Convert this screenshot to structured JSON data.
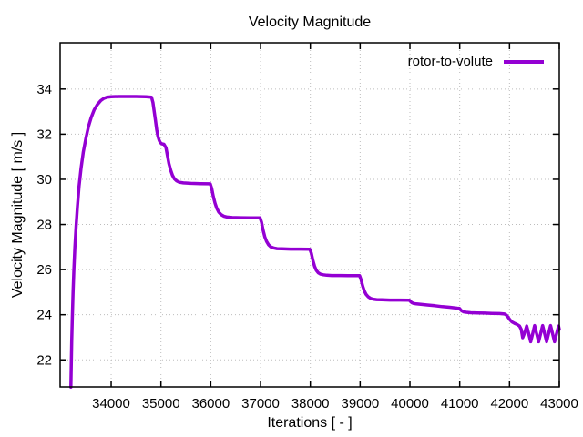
{
  "title": "Velocity Magnitude",
  "axes": {
    "xlabel": "Iterations [ - ]",
    "ylabel": "Velocity Magnitude [ m/s ]"
  },
  "legend": {
    "label": "rotor-to-volute",
    "position": "top-right-inside"
  },
  "colors": {
    "line": "#9400d3",
    "grid": "#bdbdbd",
    "axis": "#000000",
    "background": "#ffffff",
    "text": "#000000"
  },
  "chart_data": {
    "type": "line",
    "title": "Velocity Magnitude",
    "xlabel": "Iterations [ - ]",
    "ylabel": "Velocity Magnitude [ m/s ]",
    "xlim": [
      32975,
      43000
    ],
    "ylim": [
      20.8,
      36.05
    ],
    "x_ticks": [
      34000,
      35000,
      36000,
      37000,
      38000,
      39000,
      40000,
      41000,
      42000,
      43000
    ],
    "y_ticks": [
      22,
      24,
      26,
      28,
      30,
      32,
      34
    ],
    "grid": true,
    "grid_style": "dotted",
    "legend_position": "top-right-inside",
    "series": [
      {
        "name": "rotor-to-volute",
        "color": "#9400d3",
        "points": [
          [
            33190,
            20.79
          ],
          [
            33198,
            21.7
          ],
          [
            33208,
            22.8
          ],
          [
            33220,
            23.9
          ],
          [
            33235,
            25.0
          ],
          [
            33252,
            26.0
          ],
          [
            33272,
            27.0
          ],
          [
            33295,
            27.9
          ],
          [
            33322,
            28.8
          ],
          [
            33355,
            29.7
          ],
          [
            33395,
            30.5
          ],
          [
            33440,
            31.2
          ],
          [
            33490,
            31.8
          ],
          [
            33545,
            32.35
          ],
          [
            33600,
            32.75
          ],
          [
            33660,
            33.08
          ],
          [
            33725,
            33.32
          ],
          [
            33790,
            33.49
          ],
          [
            33855,
            33.59
          ],
          [
            33920,
            33.64
          ],
          [
            34000,
            33.66
          ],
          [
            34150,
            33.67
          ],
          [
            34300,
            33.67
          ],
          [
            34500,
            33.67
          ],
          [
            34700,
            33.66
          ],
          [
            34810,
            33.64
          ],
          [
            34840,
            33.4
          ],
          [
            34865,
            33.0
          ],
          [
            34890,
            32.6
          ],
          [
            34915,
            32.2
          ],
          [
            34940,
            31.9
          ],
          [
            34965,
            31.72
          ],
          [
            34990,
            31.62
          ],
          [
            35020,
            31.57
          ],
          [
            35060,
            31.55
          ],
          [
            35100,
            31.4
          ],
          [
            35130,
            31.05
          ],
          [
            35160,
            30.7
          ],
          [
            35195,
            30.4
          ],
          [
            35230,
            30.18
          ],
          [
            35270,
            30.02
          ],
          [
            35315,
            29.93
          ],
          [
            35370,
            29.87
          ],
          [
            35450,
            29.84
          ],
          [
            35600,
            29.82
          ],
          [
            35800,
            29.81
          ],
          [
            35990,
            29.8
          ],
          [
            36020,
            29.6
          ],
          [
            36050,
            29.25
          ],
          [
            36085,
            28.95
          ],
          [
            36120,
            28.72
          ],
          [
            36160,
            28.55
          ],
          [
            36205,
            28.44
          ],
          [
            36260,
            28.37
          ],
          [
            36330,
            28.33
          ],
          [
            36430,
            28.31
          ],
          [
            36600,
            28.3
          ],
          [
            36800,
            28.29
          ],
          [
            36990,
            28.29
          ],
          [
            37020,
            28.1
          ],
          [
            37050,
            27.75
          ],
          [
            37085,
            27.45
          ],
          [
            37120,
            27.25
          ],
          [
            37160,
            27.1
          ],
          [
            37205,
            27.01
          ],
          [
            37260,
            26.96
          ],
          [
            37330,
            26.93
          ],
          [
            37430,
            26.92
          ],
          [
            37600,
            26.91
          ],
          [
            37800,
            26.91
          ],
          [
            37990,
            26.9
          ],
          [
            38020,
            26.72
          ],
          [
            38050,
            26.42
          ],
          [
            38085,
            26.15
          ],
          [
            38120,
            25.97
          ],
          [
            38160,
            25.86
          ],
          [
            38205,
            25.8
          ],
          [
            38260,
            25.77
          ],
          [
            38330,
            25.75
          ],
          [
            38430,
            25.74
          ],
          [
            38600,
            25.74
          ],
          [
            38800,
            25.73
          ],
          [
            38990,
            25.73
          ],
          [
            39020,
            25.55
          ],
          [
            39050,
            25.28
          ],
          [
            39085,
            25.05
          ],
          [
            39120,
            24.9
          ],
          [
            39160,
            24.8
          ],
          [
            39205,
            24.73
          ],
          [
            39260,
            24.69
          ],
          [
            39330,
            24.67
          ],
          [
            39430,
            24.66
          ],
          [
            39600,
            24.65
          ],
          [
            39800,
            24.65
          ],
          [
            39990,
            24.64
          ],
          [
            40015,
            24.58
          ],
          [
            40040,
            24.53
          ],
          [
            40075,
            24.5
          ],
          [
            40130,
            24.48
          ],
          [
            40220,
            24.46
          ],
          [
            40350,
            24.43
          ],
          [
            40500,
            24.4
          ],
          [
            40650,
            24.36
          ],
          [
            40800,
            24.33
          ],
          [
            40950,
            24.29
          ],
          [
            40995,
            24.28
          ],
          [
            41015,
            24.22
          ],
          [
            41040,
            24.17
          ],
          [
            41075,
            24.13
          ],
          [
            41130,
            24.11
          ],
          [
            41220,
            24.09
          ],
          [
            41350,
            24.08
          ],
          [
            41500,
            24.07
          ],
          [
            41650,
            24.06
          ],
          [
            41800,
            24.05
          ],
          [
            41900,
            24.03
          ],
          [
            41940,
            23.98
          ],
          [
            41975,
            23.88
          ],
          [
            42010,
            23.77
          ],
          [
            42050,
            23.68
          ],
          [
            42100,
            23.62
          ],
          [
            42150,
            23.57
          ],
          [
            42200,
            23.5
          ],
          [
            42235,
            23.35
          ],
          [
            42265,
            22.98
          ],
          [
            42305,
            23.2
          ],
          [
            42345,
            23.5
          ],
          [
            42385,
            23.16
          ],
          [
            42425,
            22.8
          ],
          [
            42465,
            23.16
          ],
          [
            42505,
            23.52
          ],
          [
            42545,
            23.16
          ],
          [
            42585,
            22.8
          ],
          [
            42625,
            23.16
          ],
          [
            42665,
            23.52
          ],
          [
            42705,
            23.16
          ],
          [
            42745,
            22.8
          ],
          [
            42785,
            23.16
          ],
          [
            42825,
            23.52
          ],
          [
            42865,
            23.16
          ],
          [
            42905,
            22.8
          ],
          [
            42945,
            23.16
          ],
          [
            42985,
            23.5
          ],
          [
            43000,
            23.35
          ]
        ]
      }
    ]
  }
}
